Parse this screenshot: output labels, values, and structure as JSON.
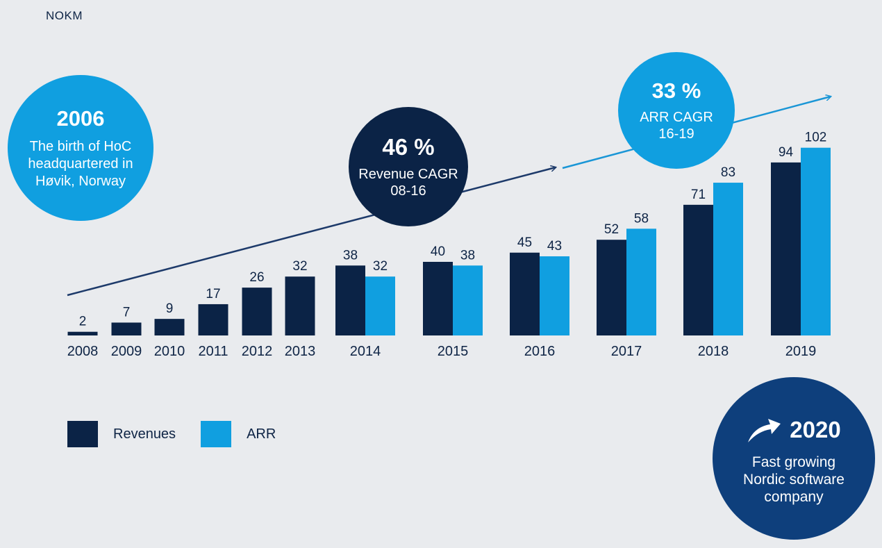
{
  "chart_data": {
    "type": "bar",
    "unit": "NOKM",
    "categories": [
      "2008",
      "2009",
      "2010",
      "2011",
      "2012",
      "2013",
      "2014",
      "2015",
      "2016",
      "2017",
      "2018",
      "2019"
    ],
    "series": [
      {
        "name": "Revenues",
        "color": "#0b2346",
        "values": [
          2,
          7,
          9,
          17,
          26,
          32,
          38,
          40,
          45,
          52,
          71,
          94
        ]
      },
      {
        "name": "ARR",
        "color": "#109fe0",
        "values": [
          null,
          null,
          null,
          null,
          null,
          null,
          32,
          38,
          43,
          58,
          83,
          102
        ]
      }
    ],
    "ylim": [
      0,
      102
    ]
  },
  "callouts": {
    "birth": {
      "year": "2006",
      "text_lines": [
        "The birth of HoC",
        "headquartered in",
        "Høvik, Norway"
      ]
    },
    "revenue_cagr": {
      "value": "46 %",
      "line1": "Revenue CAGR",
      "line2": "08-16"
    },
    "arr_cagr": {
      "value": "33 %",
      "line1": "ARR CAGR",
      "line2": "16-19"
    },
    "company": {
      "year": "2020",
      "text_lines": [
        "Fast growing",
        "Nordic software",
        "company"
      ]
    }
  },
  "legend": {
    "revenues_label": "Revenues",
    "arr_label": "ARR"
  }
}
